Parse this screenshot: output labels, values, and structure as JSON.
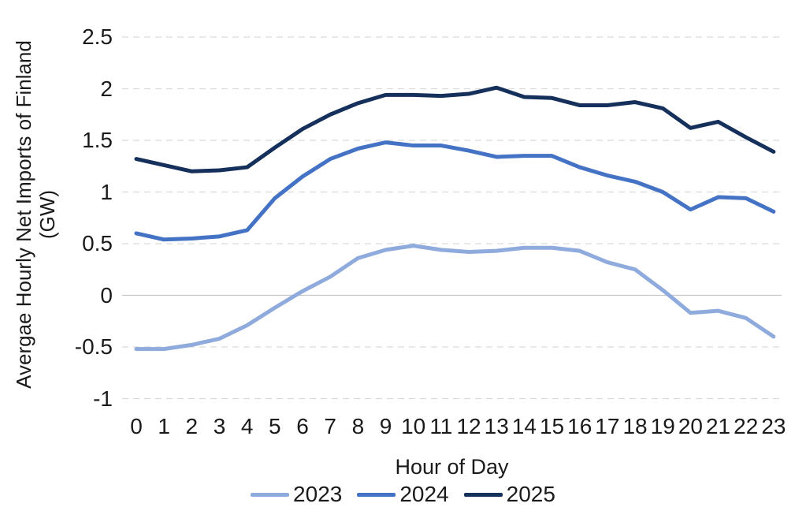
{
  "colors": {
    "gridline": "#DBDBDB",
    "zero_line": "#C8C8C8",
    "text": "#1A1A1A",
    "series_2023": "#8FAADC",
    "series_2024": "#4472C4",
    "series_2025": "#16305C"
  },
  "chart_data": {
    "type": "line",
    "xlabel": "Hour of Day",
    "ylabel": "Avergae Hourly Net Imports of Finland (GW)",
    "ylabel_line1": "Avergae Hourly Net Imports of Finland",
    "ylabel_line2": "(GW)",
    "x": [
      0,
      1,
      2,
      3,
      4,
      5,
      6,
      7,
      8,
      9,
      10,
      11,
      12,
      13,
      14,
      15,
      16,
      17,
      18,
      19,
      20,
      21,
      22,
      23
    ],
    "xtick_labels": [
      "0",
      "1",
      "2",
      "3",
      "4",
      "5",
      "6",
      "7",
      "8",
      "9",
      "10",
      "11",
      "12",
      "13",
      "14",
      "15",
      "16",
      "17",
      "18",
      "19",
      "20",
      "21",
      "22",
      "23"
    ],
    "yticks": [
      2.5,
      2,
      1.5,
      1,
      0.5,
      0,
      -0.5,
      -1
    ],
    "ytick_labels": [
      "2.5",
      "2",
      "1.5",
      "1",
      "0.5",
      "0",
      "-0.5",
      "-1"
    ],
    "ylim": [
      -1,
      2.5
    ],
    "grid": "horizontal-dashed, solid line at zero",
    "legend_position": "bottom-center",
    "series": [
      {
        "name": "2023",
        "color": "#8FAADC",
        "values": [
          -0.52,
          -0.52,
          -0.48,
          -0.42,
          -0.29,
          -0.12,
          0.04,
          0.18,
          0.36,
          0.44,
          0.48,
          0.44,
          0.42,
          0.43,
          0.46,
          0.46,
          0.43,
          0.32,
          0.25,
          0.05,
          -0.17,
          -0.15,
          -0.22,
          -0.4
        ]
      },
      {
        "name": "2024",
        "color": "#4472C4",
        "values": [
          0.6,
          0.54,
          0.55,
          0.57,
          0.63,
          0.94,
          1.15,
          1.32,
          1.42,
          1.48,
          1.45,
          1.45,
          1.4,
          1.34,
          1.35,
          1.35,
          1.24,
          1.16,
          1.1,
          1.0,
          0.83,
          0.95,
          0.94,
          0.81
        ]
      },
      {
        "name": "2025",
        "color": "#16305C",
        "values": [
          1.32,
          1.26,
          1.2,
          1.21,
          1.24,
          1.43,
          1.61,
          1.75,
          1.86,
          1.94,
          1.94,
          1.93,
          1.95,
          2.01,
          1.92,
          1.91,
          1.84,
          1.84,
          1.87,
          1.81,
          1.62,
          1.68,
          1.53,
          1.39
        ]
      }
    ]
  }
}
